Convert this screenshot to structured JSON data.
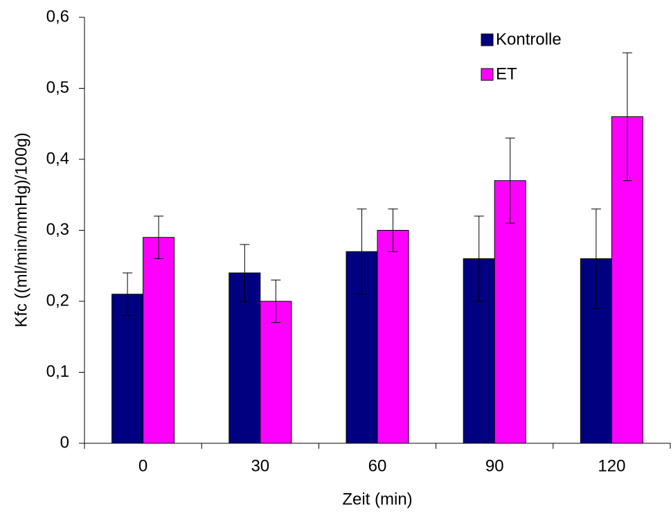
{
  "chart_data": {
    "type": "bar",
    "x_label": "Zeit (min)",
    "y_label": "Kfc ((ml/min/mmHg)/100g)",
    "categories": [
      "0",
      "30",
      "60",
      "90",
      "120"
    ],
    "series": [
      {
        "name": "Kontrolle",
        "color": "#000080",
        "values": [
          0.21,
          0.24,
          0.27,
          0.26,
          0.26
        ],
        "errors": [
          0.03,
          0.04,
          0.06,
          0.06,
          0.07
        ]
      },
      {
        "name": "ET",
        "color": "#ff00ff",
        "values": [
          0.29,
          0.2,
          0.3,
          0.37,
          0.46
        ],
        "errors": [
          0.03,
          0.03,
          0.03,
          0.06,
          0.09
        ]
      }
    ],
    "ylim": [
      0,
      0.6
    ],
    "yticks": [
      0,
      {
        "value": 0.1,
        "label": "0,1"
      },
      {
        "value": 0.2,
        "label": "0,2"
      },
      {
        "value": 0.3,
        "label": "0,3"
      },
      {
        "value": 0.4,
        "label": "0,4"
      },
      {
        "value": 0.5,
        "label": "0,5"
      },
      {
        "value": 0.6,
        "label": "0,6"
      }
    ],
    "grid": false,
    "legend": "top-right"
  }
}
